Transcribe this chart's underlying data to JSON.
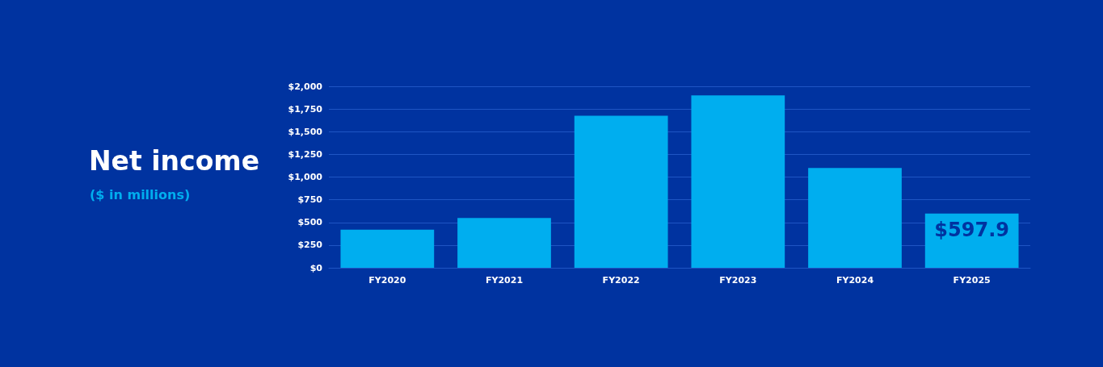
{
  "chart_data": {
    "type": "bar",
    "title": "Net income",
    "subtitle": "($ in millions)",
    "categories": [
      "FY2020",
      "FY2021",
      "FY2022",
      "FY2023",
      "FY2024",
      "FY2025"
    ],
    "values": [
      420,
      550,
      1675,
      1900,
      1100,
      597.9
    ],
    "value_labels": [
      null,
      null,
      null,
      null,
      null,
      "$597.9"
    ],
    "color": "#00aeef",
    "ylim": [
      0,
      2000
    ],
    "yticks": [
      {
        "value": 0,
        "label": "$0"
      },
      {
        "value": 250,
        "label": "$250"
      },
      {
        "value": 500,
        "label": "$500"
      },
      {
        "value": 750,
        "label": "$750"
      },
      {
        "value": 1000,
        "label": "$1,000"
      },
      {
        "value": 1250,
        "label": "$1,250"
      },
      {
        "value": 1500,
        "label": "$1,500"
      },
      {
        "value": 1750,
        "label": "$1,750"
      },
      {
        "value": 2000,
        "label": "$2,000"
      }
    ],
    "grid": "y"
  }
}
